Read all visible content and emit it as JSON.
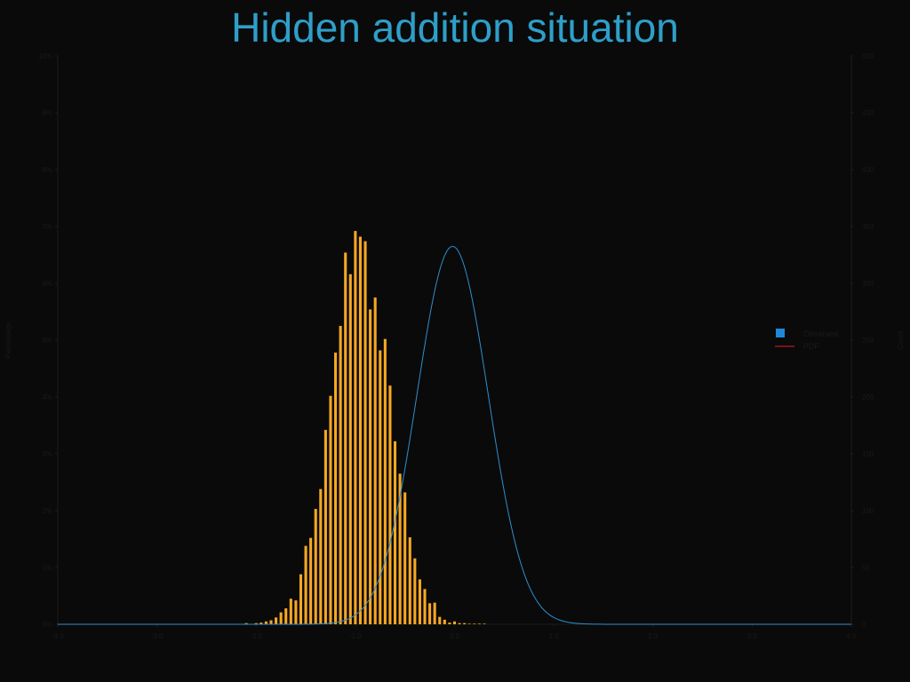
{
  "chart_data": {
    "type": "bar",
    "title": "Hidden addition situation",
    "ylabel": "Percentage",
    "y2label": "Count",
    "xlim": [
      -4.0,
      4.0
    ],
    "ylim": [
      0,
      10
    ],
    "y2lim": [
      0,
      500
    ],
    "x_ticks": [
      "-4.0",
      "-3.0",
      "-2.0",
      "-1.0",
      "0.0",
      "1.0",
      "2.0",
      "3.0",
      "4.0"
    ],
    "y_ticks": [
      "0%",
      "1%",
      "2%",
      "3%",
      "4%",
      "5%",
      "6%",
      "7%",
      "8%",
      "9%",
      "10%"
    ],
    "y2_ticks": [
      "0",
      "50",
      "100",
      "150",
      "200",
      "250",
      "300",
      "350",
      "400",
      "450",
      "500"
    ],
    "legend": {
      "position": "right",
      "items": [
        "Observed",
        "PDF"
      ]
    },
    "colors": {
      "bars": "#f7a823",
      "pdf": "#2e8fd0",
      "legend_observed": "#1e88d8",
      "legend_pdf": "#e02020",
      "title": "#2e9fc9"
    },
    "series": [
      {
        "name": "Observed",
        "x": [
          -2.1,
          -2.0,
          -1.95,
          -1.9,
          -1.85,
          -1.8,
          -1.75,
          -1.7,
          -1.65,
          -1.6,
          -1.55,
          -1.5,
          -1.45,
          -1.4,
          -1.35,
          -1.3,
          -1.25,
          -1.2,
          -1.15,
          -1.1,
          -1.05,
          -1.0,
          -0.95,
          -0.9,
          -0.85,
          -0.8,
          -0.75,
          -0.7,
          -0.65,
          -0.6,
          -0.55,
          -0.5,
          -0.45,
          -0.4,
          -0.35,
          -0.3,
          -0.25,
          -0.2,
          -0.15,
          -0.1,
          -0.05,
          0.0,
          0.05,
          0.1,
          0.15,
          0.2,
          0.25,
          0.3,
          0.35,
          0.4,
          0.45,
          0.5,
          0.55,
          0.6,
          0.65,
          0.7,
          0.75,
          0.8,
          0.85,
          0.9,
          0.95,
          1.0
        ],
        "values": [
          0.02,
          0.02,
          0.03,
          0.05,
          0.07,
          0.12,
          0.21,
          0.28,
          0.45,
          0.42,
          0.88,
          1.38,
          1.52,
          2.03,
          2.38,
          3.42,
          4.02,
          4.78,
          5.25,
          6.54,
          6.16,
          6.92,
          6.82,
          6.74,
          5.54,
          5.75,
          4.82,
          5.02,
          4.2,
          3.22,
          2.65,
          2.32,
          1.53,
          1.16,
          0.79,
          0.62,
          0.37,
          0.38,
          0.13,
          0.08,
          0.03,
          0.05,
          0.02,
          0.02,
          0.01,
          0.01,
          0.01,
          0.01,
          0.0,
          0.0,
          0.0,
          0.0,
          0.0,
          0.0,
          0.0,
          0.0,
          0.0,
          0.0,
          0.0,
          0.0,
          0.0,
          0.0
        ]
      }
    ],
    "pdf": {
      "mean": -0.02,
      "sd": 0.36,
      "peak": 6.65
    }
  }
}
